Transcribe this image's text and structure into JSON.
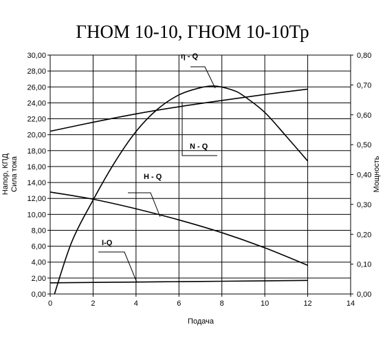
{
  "chart_data": {
    "type": "line",
    "title": "ГНОМ 10-10, ГНОМ 10-10Тр",
    "xlabel": "Подача",
    "ylabel_left": [
      "Напор, КПД",
      "Сила тока"
    ],
    "ylabel_right": "Мощность",
    "xlim": [
      0,
      14
    ],
    "xticks": [
      "0",
      "2",
      "4",
      "6",
      "8",
      "10",
      "12",
      "14"
    ],
    "ylim_left": [
      0,
      30
    ],
    "yticks_left": [
      "0,00",
      "2,00",
      "4,00",
      "6,00",
      "8,00",
      "10,00",
      "12,00",
      "14,00",
      "16,00",
      "18,00",
      "20,00",
      "22,00",
      "24,00",
      "26,00",
      "28,00",
      "30,00"
    ],
    "ylim_right": [
      0,
      0.8
    ],
    "yticks_right": [
      "0,00",
      "0,10",
      "0,20",
      "0,30",
      "0,40",
      "0,50",
      "0,60",
      "0,70",
      "0,80"
    ],
    "grid": true,
    "series": [
      {
        "name": "η - Q",
        "axis": "left",
        "x": [
          0.2,
          1,
          2,
          3,
          4,
          5,
          6,
          7,
          7.7,
          8.5,
          9,
          10,
          11,
          12
        ],
        "y": [
          0,
          6.5,
          11.8,
          16.5,
          20.4,
          23.2,
          25.0,
          25.9,
          26.1,
          25.6,
          24.9,
          22.8,
          19.8,
          16.7
        ]
      },
      {
        "name": "N - Q",
        "axis": "right",
        "x": [
          0,
          2,
          4,
          6,
          8,
          10,
          12
        ],
        "y": [
          0.545,
          0.575,
          0.603,
          0.627,
          0.648,
          0.668,
          0.686
        ]
      },
      {
        "name": "H - Q",
        "axis": "left",
        "x": [
          0,
          2,
          4,
          6,
          8,
          10,
          12
        ],
        "y": [
          12.8,
          11.9,
          10.7,
          9.3,
          7.7,
          5.8,
          3.6
        ]
      },
      {
        "name": "I-Q",
        "axis": "left",
        "x": [
          0,
          2,
          4,
          6,
          8,
          10,
          12
        ],
        "y": [
          1.4,
          1.45,
          1.5,
          1.55,
          1.6,
          1.65,
          1.7
        ]
      }
    ]
  }
}
